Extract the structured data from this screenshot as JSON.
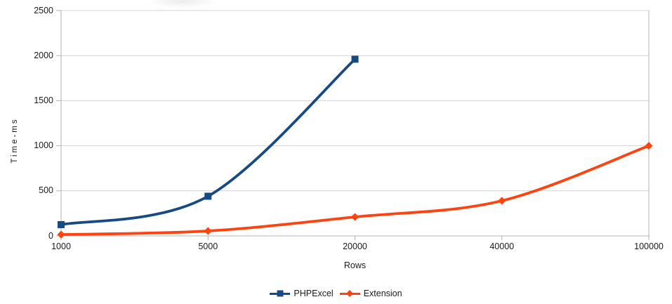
{
  "chart_data": {
    "type": "line",
    "title": "",
    "categories": [
      "1000",
      "5000",
      "20000",
      "40000",
      "100000"
    ],
    "series": [
      {
        "name": "PHPExcel",
        "values": [
          125,
          440,
          1960
        ],
        "color": "#174a85",
        "marker": "square"
      },
      {
        "name": "Extension",
        "values": [
          15,
          55,
          210,
          390,
          1000
        ],
        "color": "#ff420e",
        "marker": "diamond"
      }
    ],
    "xlabel": "Rows",
    "ylabel": "Time-ms",
    "ylim": [
      0,
      2500
    ],
    "yticks": [
      "0",
      "500",
      "1000",
      "1500",
      "2000",
      "2500"
    ],
    "grid": "horizontal",
    "line_style": "smooth",
    "legend_position": "bottom"
  },
  "colors": {
    "grid": "#d3d3d3",
    "axis": "#b3b3b3",
    "text": "#1a1a1a",
    "background": "#ffffff"
  }
}
